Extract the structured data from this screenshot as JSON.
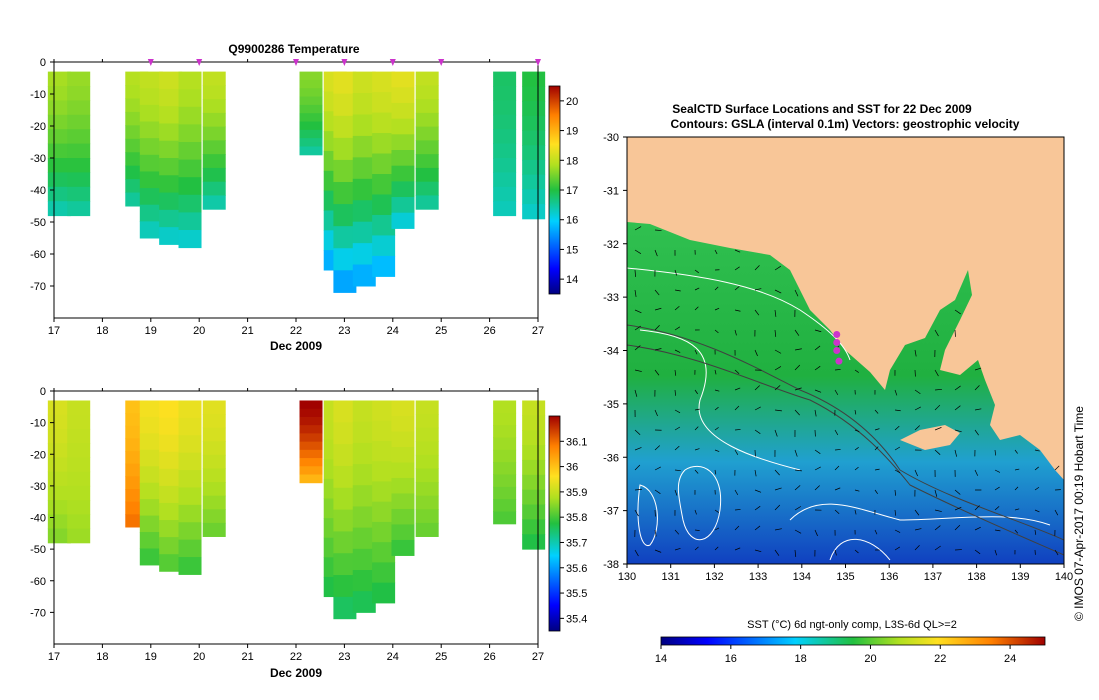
{
  "chart_data": [
    {
      "type": "heatmap",
      "title": "Q9900286  Temperature",
      "xlabel": "Dec 2009",
      "ylabel": "",
      "x_ticks": [
        "17",
        "18",
        "19",
        "20",
        "21",
        "22",
        "23",
        "24",
        "25",
        "26",
        "27"
      ],
      "y_ticks": [
        "0",
        "-10",
        "-20",
        "-30",
        "-40",
        "-50",
        "-60",
        "-70"
      ],
      "xlim": [
        17,
        27
      ],
      "ylim": [
        -80,
        0
      ],
      "colorbar": {
        "ticks": [
          "14",
          "15",
          "16",
          "17",
          "18",
          "19",
          "20"
        ],
        "range": [
          13.5,
          20.5
        ]
      },
      "profile_marks": [
        19,
        20,
        22,
        23,
        24,
        25,
        27
      ],
      "profiles": [
        {
          "day": 17.1,
          "depth": -48,
          "t_top": 17.8,
          "t_bottom": 16.3
        },
        {
          "day": 17.5,
          "depth": -48,
          "t_top": 17.7,
          "t_bottom": 16.4
        },
        {
          "day": 18.7,
          "depth": -45,
          "t_top": 17.9,
          "t_bottom": 16.4
        },
        {
          "day": 19.0,
          "depth": -55,
          "t_top": 18.0,
          "t_bottom": 16.2
        },
        {
          "day": 19.4,
          "depth": -57,
          "t_top": 18.1,
          "t_bottom": 16.1
        },
        {
          "day": 19.8,
          "depth": -58,
          "t_top": 17.9,
          "t_bottom": 16.1
        },
        {
          "day": 20.3,
          "depth": -46,
          "t_top": 18.0,
          "t_bottom": 16.3
        },
        {
          "day": 22.3,
          "depth": -29,
          "t_top": 17.6,
          "t_bottom": 16.4
        },
        {
          "day": 22.8,
          "depth": -65,
          "t_top": 18.2,
          "t_bottom": 15.5
        },
        {
          "day": 23.0,
          "depth": -72,
          "t_top": 18.3,
          "t_bottom": 15.4
        },
        {
          "day": 23.4,
          "depth": -70,
          "t_top": 18.1,
          "t_bottom": 15.5
        },
        {
          "day": 23.8,
          "depth": -67,
          "t_top": 18.2,
          "t_bottom": 15.6
        },
        {
          "day": 24.2,
          "depth": -52,
          "t_top": 18.3,
          "t_bottom": 16.0
        },
        {
          "day": 24.7,
          "depth": -46,
          "t_top": 18.0,
          "t_bottom": 16.4
        },
        {
          "day": 26.3,
          "depth": -48,
          "t_top": 16.8,
          "t_bottom": 16.3
        },
        {
          "day": 26.9,
          "depth": -49,
          "t_top": 17.0,
          "t_bottom": 16.2
        }
      ]
    },
    {
      "type": "heatmap",
      "title": "",
      "xlabel": "Dec 2009",
      "ylabel": "",
      "x_ticks": [
        "17",
        "18",
        "19",
        "20",
        "21",
        "22",
        "23",
        "24",
        "25",
        "26",
        "27"
      ],
      "y_ticks": [
        "0",
        "-10",
        "-20",
        "-30",
        "-40",
        "-50",
        "-60",
        "-70"
      ],
      "xlim": [
        17,
        27
      ],
      "ylim": [
        -80,
        0
      ],
      "colorbar": {
        "ticks": [
          "35.4",
          "35.5",
          "35.6",
          "35.7",
          "35.8",
          "35.9",
          "36",
          "36.1"
        ],
        "range": [
          35.35,
          36.2
        ]
      },
      "profiles": [
        {
          "day": 17.1,
          "depth": -48,
          "s_top": 35.92,
          "s_bottom": 35.84
        },
        {
          "day": 17.5,
          "depth": -48,
          "s_top": 35.9,
          "s_bottom": 35.86
        },
        {
          "day": 18.7,
          "depth": -43,
          "s_top": 36.0,
          "s_bottom": 36.1
        },
        {
          "day": 19.0,
          "depth": -55,
          "s_top": 35.95,
          "s_bottom": 35.78
        },
        {
          "day": 19.4,
          "depth": -57,
          "s_top": 35.96,
          "s_bottom": 35.8
        },
        {
          "day": 19.8,
          "depth": -58,
          "s_top": 35.94,
          "s_bottom": 35.78
        },
        {
          "day": 20.3,
          "depth": -46,
          "s_top": 35.93,
          "s_bottom": 35.82
        },
        {
          "day": 22.3,
          "depth": -29,
          "s_top": 36.2,
          "s_bottom": 36.0
        },
        {
          "day": 22.8,
          "depth": -65,
          "s_top": 35.9,
          "s_bottom": 35.76
        },
        {
          "day": 23.0,
          "depth": -72,
          "s_top": 35.92,
          "s_bottom": 35.74
        },
        {
          "day": 23.4,
          "depth": -70,
          "s_top": 35.9,
          "s_bottom": 35.75
        },
        {
          "day": 23.8,
          "depth": -67,
          "s_top": 35.91,
          "s_bottom": 35.76
        },
        {
          "day": 24.2,
          "depth": -52,
          "s_top": 35.92,
          "s_bottom": 35.78
        },
        {
          "day": 24.7,
          "depth": -46,
          "s_top": 35.9,
          "s_bottom": 35.82
        },
        {
          "day": 26.3,
          "depth": -42,
          "s_top": 35.88,
          "s_bottom": 35.8
        },
        {
          "day": 26.9,
          "depth": -50,
          "s_top": 35.9,
          "s_bottom": 35.76
        }
      ]
    },
    {
      "type": "heatmap",
      "title": "SealCTD Surface Locations and SST for 22 Dec 2009",
      "subtitle": "Contours: GSLA (interval 0.1m) Vectors: geostrophic velocity",
      "side_label": "© IMOS 07-Apr-2017 00:19 Hobart Time",
      "x_ticks": [
        "130",
        "131",
        "132",
        "133",
        "134",
        "135",
        "136",
        "137",
        "138",
        "139",
        "140"
      ],
      "y_ticks": [
        "-30",
        "-31",
        "-32",
        "-33",
        "-34",
        "-35",
        "-36",
        "-37",
        "-38"
      ],
      "xlim": [
        130,
        140
      ],
      "ylim": [
        -38,
        -30
      ],
      "colorbar": {
        "label": "SST (°C) 6d ngt-only comp, L3S-6d QL>=2",
        "ticks": [
          "14",
          "16",
          "18",
          "20",
          "22",
          "24"
        ],
        "range": [
          14,
          25
        ]
      },
      "seal_locations": [
        [
          134.8,
          -33.7
        ],
        [
          134.8,
          -33.85
        ],
        [
          134.8,
          -34.0
        ],
        [
          134.85,
          -34.2
        ]
      ]
    }
  ],
  "colors": {
    "land": "#f8c698",
    "seal_marks": "#cc33cc",
    "contours": "#ffffff"
  }
}
